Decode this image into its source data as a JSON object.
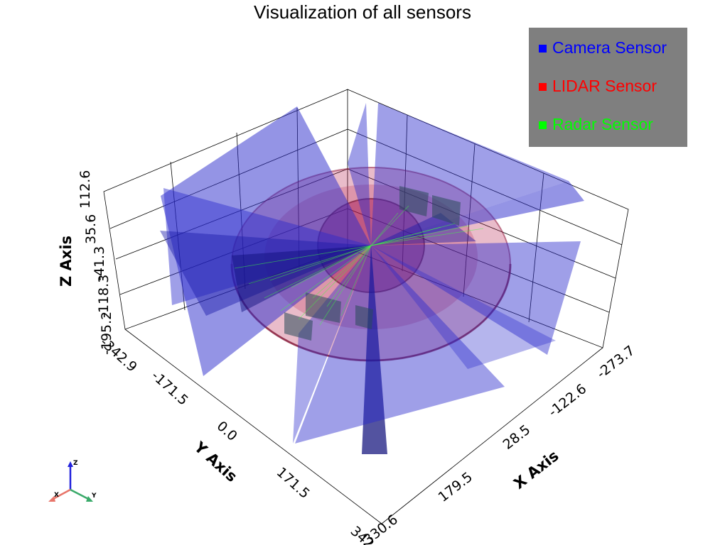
{
  "title": "Visualization of all sensors",
  "legend": [
    {
      "label": "Camera Sensor",
      "color": "#0000ff"
    },
    {
      "label": "LIDAR Sensor",
      "color": "#ff0000"
    },
    {
      "label": "Radar Sensor",
      "color": "#00ff00"
    }
  ],
  "legend_background": "#7f7f7f",
  "axes": {
    "x": {
      "title": "X Axis",
      "ticks": [
        "330.6",
        "179.5",
        "28.5",
        "-122.6",
        "-273.7"
      ]
    },
    "y": {
      "title": "Y Axis",
      "ticks": [
        "-342.9",
        "-171.5",
        "0.0",
        "171.5",
        "342.9"
      ]
    },
    "z": {
      "title": "Z Axis",
      "ticks": [
        "-195.2",
        "-118.3",
        "-41.3",
        "35.6",
        "112.6"
      ]
    }
  },
  "orientation_widget": {
    "x": "X",
    "y": "Y",
    "z": "Z"
  },
  "colors": {
    "camera_fill": "#2a2acc",
    "camera_dark": "#0a0a78",
    "lidar": "#b01040",
    "radar": "#40ff40",
    "grid": "#000000",
    "widget_x": "#e8756a",
    "widget_y": "#3aaa6a",
    "widget_z": "#2222dd"
  }
}
